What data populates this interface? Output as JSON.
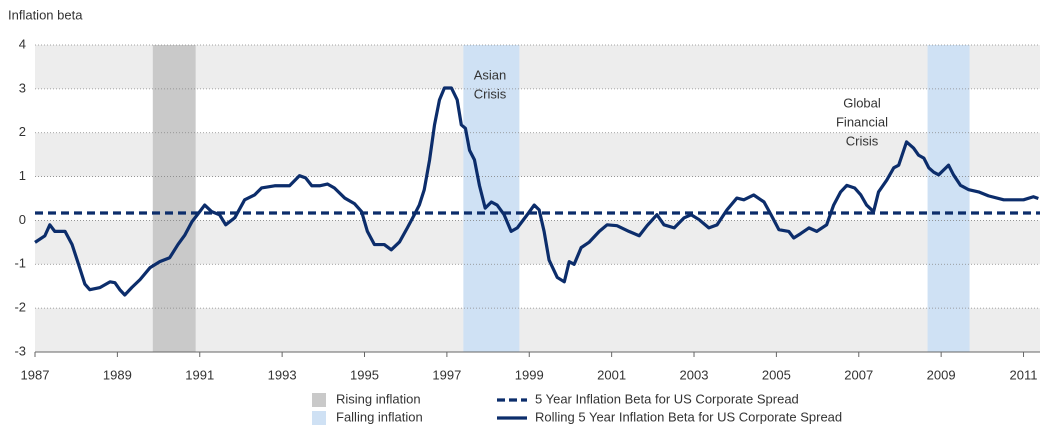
{
  "chart_data": {
    "type": "line",
    "y_label": "Inflation beta",
    "xlim": [
      1987,
      2011.4
    ],
    "xticks": [
      1987,
      1989,
      1991,
      1993,
      1995,
      1997,
      1999,
      2001,
      2003,
      2005,
      2007,
      2009,
      2011
    ],
    "ylim": [
      -3,
      4
    ],
    "yticks": [
      4,
      3,
      2,
      1,
      0,
      -1,
      -2,
      -3
    ],
    "grid": true,
    "shaded_regions": [
      {
        "name": "Rising inflation",
        "color": "#c9c9c9",
        "spans": [
          [
            1989.86,
            1990.9
          ]
        ]
      },
      {
        "name": "Falling inflation",
        "color": "#cfe1f4",
        "spans": [
          [
            1997.4,
            1998.76
          ],
          [
            2008.67,
            2009.69
          ]
        ]
      }
    ],
    "annotations": [
      {
        "lines": [
          "Asian",
          "Crisis"
        ]
      },
      {
        "lines": [
          "Global",
          "Financial",
          "Crisis"
        ]
      }
    ],
    "series": [
      {
        "name": "5 Year Inflation Beta for US Corporate Spread",
        "color": "#0c2d6b",
        "style": "dashed",
        "x": [
          1987,
          2011.4
        ],
        "values": [
          0.17,
          0.17
        ]
      },
      {
        "name": "Rolling 5 Year Inflation Beta for US Corporate Spread",
        "color": "#0c2d6b",
        "style": "solid",
        "x": [
          1987.0,
          1987.24,
          1987.36,
          1987.48,
          1987.73,
          1987.9,
          1988.04,
          1988.21,
          1988.33,
          1988.58,
          1988.82,
          1988.94,
          1989.06,
          1989.18,
          1989.35,
          1989.55,
          1989.79,
          1990.03,
          1990.27,
          1990.47,
          1990.64,
          1990.81,
          1991.0,
          1991.12,
          1991.29,
          1991.48,
          1991.63,
          1991.85,
          1992.09,
          1992.33,
          1992.5,
          1992.82,
          1993.18,
          1993.42,
          1993.57,
          1993.72,
          1993.91,
          1994.1,
          1994.27,
          1994.52,
          1994.76,
          1994.93,
          1995.07,
          1995.24,
          1995.48,
          1995.65,
          1995.85,
          1996.04,
          1996.21,
          1996.33,
          1996.45,
          1996.58,
          1996.7,
          1996.82,
          1996.94,
          1997.11,
          1997.25,
          1997.35,
          1997.45,
          1997.55,
          1997.67,
          1997.79,
          1997.93,
          1998.08,
          1998.22,
          1998.39,
          1998.56,
          1998.71,
          1998.95,
          1999.12,
          1999.24,
          1999.36,
          1999.48,
          1999.68,
          1999.85,
          1999.97,
          2000.09,
          2000.26,
          2000.45,
          2000.7,
          2000.89,
          2001.13,
          2001.42,
          2001.67,
          2001.86,
          2002.1,
          2002.27,
          2002.52,
          2002.76,
          2002.93,
          2003.12,
          2003.36,
          2003.56,
          2003.8,
          2004.04,
          2004.21,
          2004.45,
          2004.7,
          2004.87,
          2005.06,
          2005.3,
          2005.42,
          2005.59,
          2005.79,
          2005.98,
          2006.22,
          2006.39,
          2006.56,
          2006.71,
          2006.9,
          2007.05,
          2007.19,
          2007.36,
          2007.48,
          2007.68,
          2007.85,
          2007.97,
          2008.16,
          2008.33,
          2008.45,
          2008.58,
          2008.7,
          2008.82,
          2008.94,
          2009.06,
          2009.18,
          2009.3,
          2009.47,
          2009.67,
          2009.91,
          2010.15,
          2010.52,
          2010.76,
          2011.0,
          2011.24,
          2011.36
        ],
        "values": [
          -0.5,
          -0.35,
          -0.1,
          -0.25,
          -0.25,
          -0.55,
          -0.95,
          -1.45,
          -1.58,
          -1.53,
          -1.4,
          -1.42,
          -1.58,
          -1.7,
          -1.53,
          -1.35,
          -1.08,
          -0.94,
          -0.85,
          -0.55,
          -0.33,
          -0.03,
          0.2,
          0.35,
          0.2,
          0.13,
          -0.1,
          0.06,
          0.47,
          0.58,
          0.74,
          0.79,
          0.79,
          1.02,
          0.97,
          0.79,
          0.79,
          0.83,
          0.74,
          0.51,
          0.38,
          0.2,
          -0.25,
          -0.55,
          -0.55,
          -0.67,
          -0.49,
          -0.17,
          0.13,
          0.35,
          0.7,
          1.38,
          2.18,
          2.75,
          3.02,
          3.02,
          2.75,
          2.18,
          2.1,
          1.6,
          1.38,
          0.8,
          0.28,
          0.42,
          0.35,
          0.13,
          -0.25,
          -0.17,
          0.13,
          0.35,
          0.24,
          -0.25,
          -0.9,
          -1.3,
          -1.4,
          -0.94,
          -1.0,
          -0.62,
          -0.5,
          -0.25,
          -0.1,
          -0.12,
          -0.25,
          -0.35,
          -0.12,
          0.13,
          -0.1,
          -0.17,
          0.06,
          0.13,
          0.02,
          -0.17,
          -0.1,
          0.24,
          0.51,
          0.47,
          0.58,
          0.42,
          0.13,
          -0.21,
          -0.25,
          -0.4,
          -0.3,
          -0.17,
          -0.25,
          -0.1,
          0.35,
          0.65,
          0.8,
          0.74,
          0.58,
          0.35,
          0.2,
          0.65,
          0.92,
          1.2,
          1.26,
          1.79,
          1.65,
          1.49,
          1.42,
          1.2,
          1.1,
          1.04,
          1.15,
          1.26,
          1.04,
          0.8,
          0.7,
          0.65,
          0.56,
          0.47,
          0.47,
          0.47,
          0.54,
          0.5
        ]
      }
    ]
  }
}
